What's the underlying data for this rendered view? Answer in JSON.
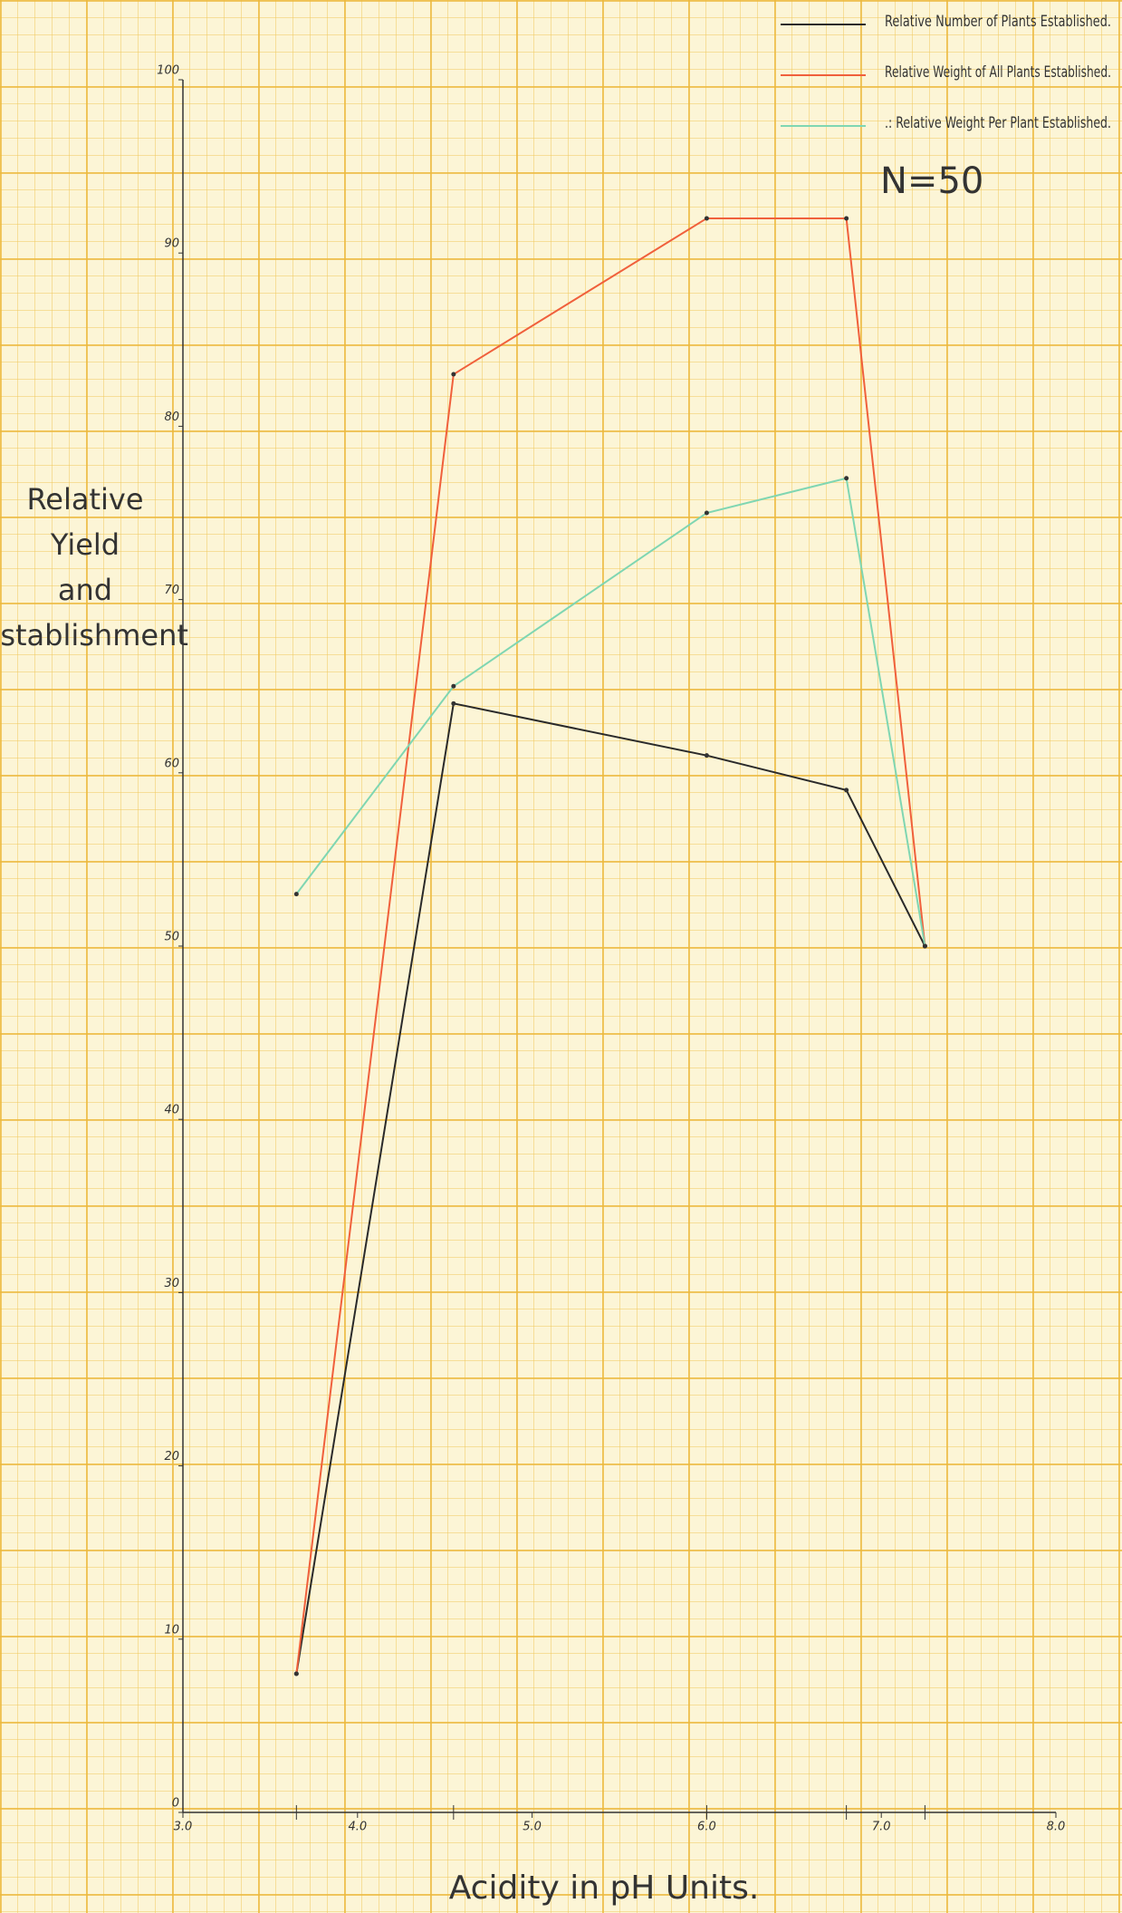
{
  "chart_data": {
    "type": "line",
    "x_label": "Acidity in pH Units.",
    "y_label": [
      "Relative",
      "Yield",
      "and",
      "Establishment"
    ],
    "annotation": "N=50",
    "x": [
      3.65,
      4.55,
      6.0,
      6.8,
      7.25
    ],
    "series": [
      {
        "name": "Relative Number of Plants Established.",
        "color": "#2a2a2a",
        "values": [
          8,
          64,
          61,
          59,
          50
        ]
      },
      {
        "name": "Relative Weight of All Plants Established.",
        "color": "#f0603c",
        "values": [
          8,
          83,
          92,
          92,
          50
        ]
      },
      {
        "name": ".: Relative Weight Per Plant Established.",
        "color": "#7fd6b2",
        "values": [
          53,
          65,
          75,
          77,
          50
        ]
      }
    ],
    "xlim": [
      3,
      8
    ],
    "xticks": [
      {
        "value": 3,
        "label": "3.0"
      },
      {
        "value": 4,
        "label": "4.0"
      },
      {
        "value": 5,
        "label": "5.0"
      },
      {
        "value": 6,
        "label": "6.0"
      },
      {
        "value": 7,
        "label": "7.0"
      },
      {
        "value": 8,
        "label": "8.0"
      }
    ],
    "ylim": [
      0,
      100
    ],
    "yticks": [
      0,
      10,
      20,
      30,
      40,
      50,
      60,
      70,
      80,
      90,
      100
    ],
    "legend": "upper right"
  }
}
